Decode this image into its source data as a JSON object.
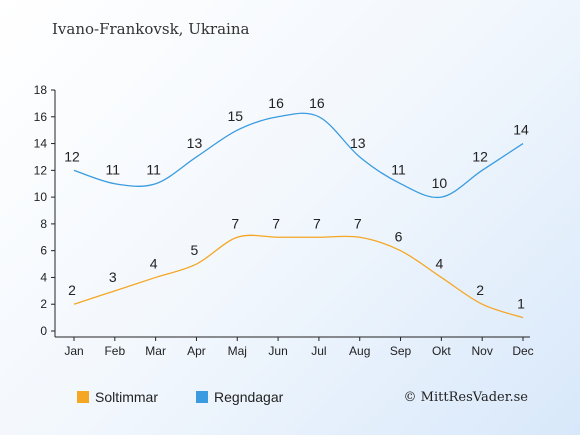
{
  "chart_data": {
    "type": "line",
    "title": "Ivano-Frankovsk, Ukraina",
    "categories": [
      "Jan",
      "Feb",
      "Mar",
      "Apr",
      "Maj",
      "Jun",
      "Jul",
      "Aug",
      "Sep",
      "Okt",
      "Nov",
      "Dec"
    ],
    "ylim": [
      0,
      18
    ],
    "yticks": [
      0,
      2,
      4,
      6,
      8,
      10,
      12,
      14,
      16,
      18
    ],
    "grid": false,
    "legend_position": "bottom-left",
    "series": [
      {
        "name": "Soltimmar",
        "color": "#f5a623",
        "values": [
          2,
          3,
          4,
          5,
          7,
          7,
          7,
          7,
          6,
          4,
          2,
          1
        ]
      },
      {
        "name": "Regndagar",
        "color": "#3a9be0",
        "values": [
          12,
          11,
          11,
          13,
          15,
          16,
          16,
          13,
          11,
          10,
          12,
          14
        ]
      }
    ]
  },
  "copyright": "© MittResVader.se"
}
